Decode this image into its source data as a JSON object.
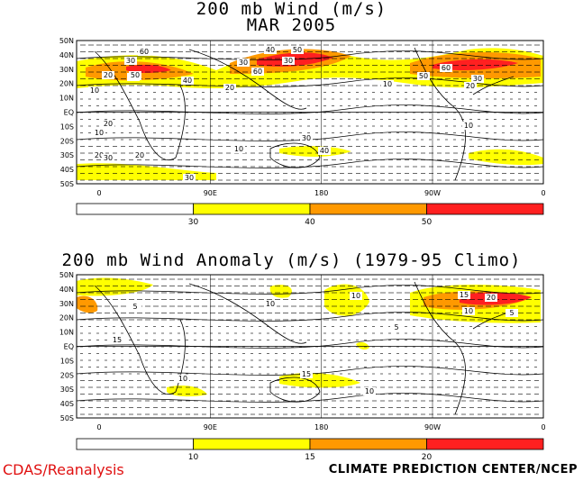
{
  "top_panel": {
    "title_line1": "200 mb Wind (m/s)",
    "title_line2": "MAR 2005",
    "lat_labels": [
      "50N",
      "40N",
      "30N",
      "20N",
      "10N",
      "EQ",
      "10S",
      "20S",
      "30S",
      "40S",
      "50S"
    ],
    "lon_labels": [
      "0",
      "90E",
      "180",
      "90W",
      "0"
    ],
    "colorbar": {
      "ticks": [
        "30",
        "40",
        "50"
      ],
      "colors": [
        "#ffffff",
        "#ffff00",
        "#ff9900",
        "#ff2020"
      ]
    },
    "contour_labels": [
      "10",
      "20",
      "30",
      "40",
      "50",
      "60",
      "30",
      "40",
      "50",
      "60",
      "50",
      "40",
      "20",
      "30",
      "10",
      "20",
      "10",
      "20",
      "30",
      "20",
      "30",
      "10",
      "30",
      "40",
      "60",
      "50",
      "20",
      "30",
      "10"
    ]
  },
  "bottom_panel": {
    "title": "200 mb Wind Anomaly (m/s) (1979-95 Climo)",
    "lat_labels": [
      "50N",
      "40N",
      "30N",
      "20N",
      "10N",
      "EQ",
      "10S",
      "20S",
      "30S",
      "40S",
      "50S"
    ],
    "lon_labels": [
      "0",
      "90E",
      "180",
      "90W",
      "0"
    ],
    "colorbar": {
      "ticks": [
        "10",
        "15",
        "20"
      ],
      "colors": [
        "#ffffff",
        "#ffff00",
        "#ff9900",
        "#ff2020"
      ]
    },
    "contour_labels": [
      "5",
      "10",
      "15",
      "20",
      "15",
      "10",
      "5",
      "10",
      "15",
      "10",
      "5",
      "10"
    ]
  },
  "footer": {
    "left": "CDAS/Reanalysis",
    "right": "CLIMATE PREDICTION CENTER/NCEP"
  }
}
